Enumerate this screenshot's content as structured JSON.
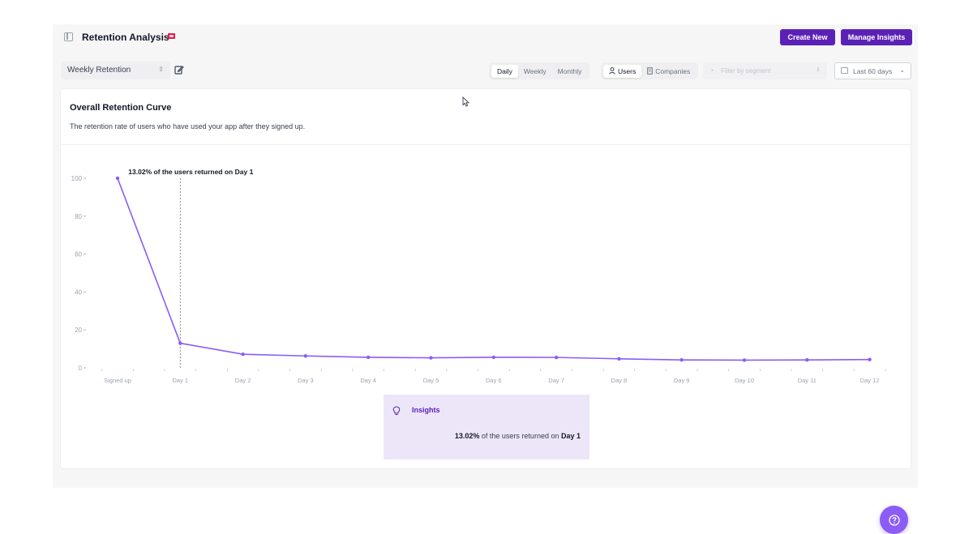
{
  "header": {
    "title": "Retention Analysis",
    "create_label": "Create New",
    "manage_label": "Manage Insights"
  },
  "toolbar": {
    "report_name": "Weekly Retention",
    "time_tabs": [
      "Daily",
      "Weekly",
      "Monthly"
    ],
    "active_time_tab": "Daily",
    "entity_tabs": [
      "Users",
      "Companies"
    ],
    "active_entity_tab": "Users",
    "segment_placeholder": "Filter by segment",
    "date_range": "Last 60 days"
  },
  "card": {
    "title": "Overall Retention Curve",
    "description": "The retention rate of users who have used your app after they signed up."
  },
  "chart_data": {
    "type": "line",
    "categories": [
      "Signed up",
      "Day 1",
      "Day 2",
      "Day 3",
      "Day 4",
      "Day 5",
      "Day 6",
      "Day 7",
      "Day 8",
      "Day 9",
      "Day 10",
      "Day 11",
      "Day 12"
    ],
    "values": [
      100,
      13.02,
      7.2,
      6.3,
      5.6,
      5.3,
      5.6,
      5.5,
      4.8,
      4.2,
      4.1,
      4.2,
      4.4
    ],
    "yticks": [
      "100",
      "80",
      "60",
      "40",
      "20",
      "0"
    ],
    "ylim": [
      0,
      100
    ],
    "annotation": "13.02% of the users returned on Day 1",
    "annotation_category": "Day 1",
    "color": "#8b5cf6",
    "grid": false
  },
  "insights": {
    "label": "Insights",
    "value": "13.02%",
    "text_mid": " of the users returned on ",
    "day": "Day 1"
  },
  "colors": {
    "brand": "#5b21b6",
    "line": "#8b5cf6",
    "insights_bg": "#ede6f8"
  }
}
